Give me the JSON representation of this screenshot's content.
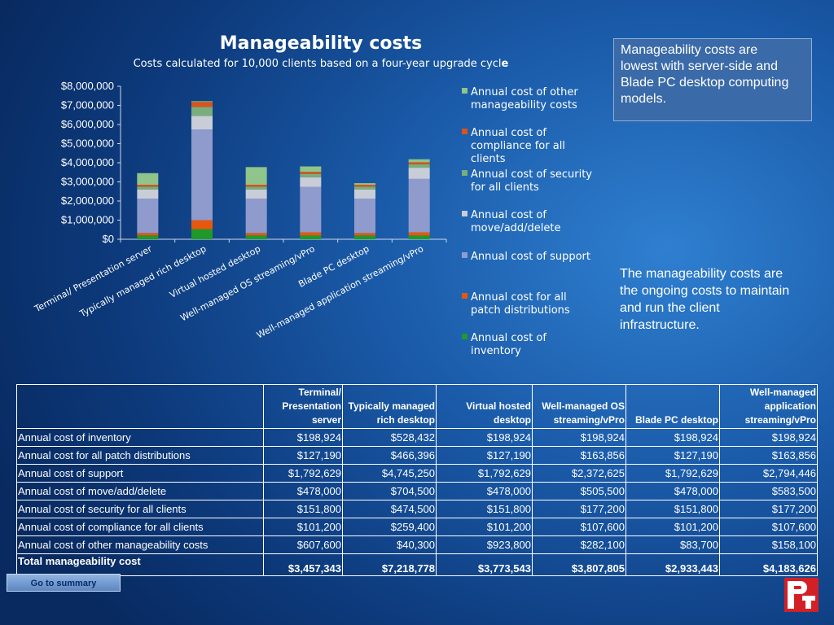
{
  "chart_data": {
    "type": "bar",
    "stacked": true,
    "title": "Manageability costs",
    "subtitle_main": "Costs calculated for 10,000 clients based on a four-year upgrade cycl",
    "subtitle_tail": "e",
    "categories": [
      "Terminal/ Presentation server",
      "Typically  managed rich desktop",
      "Virtual hosted desktop",
      "Well-managed OS streaming/vPro",
      "Blade PC desktop",
      "Well-managed application streaming/vPro"
    ],
    "ylim": [
      0,
      8000000
    ],
    "yticks": [
      0,
      1000000,
      2000000,
      3000000,
      4000000,
      5000000,
      6000000,
      7000000,
      8000000
    ],
    "ytick_labels": [
      "$0",
      "$1,000,000",
      "$2,000,000",
      "$3,000,000",
      "$4,000,000",
      "$5,000,000",
      "$6,000,000",
      "$7,000,000",
      "$8,000,000"
    ],
    "legend_position": "right",
    "series": [
      {
        "name": "Annual cost of inventory",
        "color": "#1f9a2a",
        "values": [
          198924,
          528432,
          198924,
          198924,
          198924,
          198924
        ]
      },
      {
        "name": "Annual cost for all patch distributions",
        "color": "#e8570c",
        "values": [
          127190,
          466396,
          127190,
          163856,
          127190,
          163856
        ]
      },
      {
        "name": "Annual cost of support",
        "color": "#8f9bcc",
        "values": [
          1792629,
          4745250,
          1792629,
          2372625,
          1792629,
          2794446
        ]
      },
      {
        "name": "Annual cost of move/add/delete",
        "color": "#c9cdd8",
        "values": [
          478000,
          704500,
          478000,
          505500,
          478000,
          583500
        ]
      },
      {
        "name": "Annual cost of security for all clients",
        "color": "#7aad7c",
        "values": [
          151800,
          474500,
          151800,
          177200,
          151800,
          177200
        ]
      },
      {
        "name": "Annual cost of compliance for all clients",
        "color": "#d9531a",
        "values": [
          101200,
          259400,
          101200,
          107600,
          101200,
          107600
        ]
      },
      {
        "name": "Annual cost of other manageability costs",
        "color": "#8fc48a",
        "values": [
          607600,
          40300,
          923800,
          282100,
          83700,
          158100
        ]
      }
    ]
  },
  "legend_lines": [
    [
      "Annual cost of other",
      "manageability costs"
    ],
    [
      "Annual cost of",
      "compliance for all",
      "clients"
    ],
    [
      "Annual cost of security",
      "for all clients"
    ],
    [
      "Annual cost of",
      "move/add/delete"
    ],
    [
      "Annual cost of support"
    ],
    [
      "Annual cost for all",
      "patch distributions"
    ],
    [
      "Annual cost of",
      "inventory"
    ]
  ],
  "callout": {
    "line1": "Manageability costs are",
    "line2": "lowest with server-side and",
    "line3": "Blade PC desktop computing",
    "line4": "models."
  },
  "note": {
    "line1": "The manageability costs are",
    "line2": "the ongoing costs to maintain",
    "line3": "and run the client",
    "line4": "infrastructure."
  },
  "table": {
    "headers": [
      [
        "Terminal/",
        "Presentation",
        "server"
      ],
      [
        "Typically  managed",
        "rich desktop"
      ],
      [
        "Virtual hosted",
        "desktop"
      ],
      [
        "Well-managed OS",
        "streaming/vPro"
      ],
      [
        "Blade PC desktop"
      ],
      [
        "Well-managed",
        "application",
        "streaming/vPro"
      ]
    ],
    "rows": [
      {
        "label": "Annual cost of inventory",
        "cells": [
          "$198,924",
          "$528,432",
          "$198,924",
          "$198,924",
          "$198,924",
          "$198,924"
        ]
      },
      {
        "label": "Annual cost for all patch distributions",
        "cells": [
          "$127,190",
          "$466,396",
          "$127,190",
          "$163,856",
          "$127,190",
          "$163,856"
        ]
      },
      {
        "label": "Annual cost of support",
        "cells": [
          "$1,792,629",
          "$4,745,250",
          "$1,792,629",
          "$2,372,625",
          "$1,792,629",
          "$2,794,446"
        ]
      },
      {
        "label": "Annual cost of move/add/delete",
        "cells": [
          "$478,000",
          "$704,500",
          "$478,000",
          "$505,500",
          "$478,000",
          "$583,500"
        ]
      },
      {
        "label": "Annual cost of security for all clients",
        "cells": [
          "$151,800",
          "$474,500",
          "$151,800",
          "$177,200",
          "$151,800",
          "$177,200"
        ]
      },
      {
        "label": "Annual cost of compliance for all clients",
        "cells": [
          "$101,200",
          "$259,400",
          "$101,200",
          "$107,600",
          "$101,200",
          "$107,600"
        ]
      },
      {
        "label": "Annual cost of other manageability costs",
        "cells": [
          "$607,600",
          "$40,300",
          "$923,800",
          "$282,100",
          "$83,700",
          "$158,100"
        ]
      }
    ],
    "total": {
      "label": "Total manageability cost",
      "cells": [
        "$3,457,343",
        "$7,218,778",
        "$3,773,543",
        "$3,807,805",
        "$2,933,443",
        "$4,183,626"
      ]
    }
  },
  "summary_button": "Go to summary",
  "logo": {
    "letters": "PT",
    "color": "#d32027"
  }
}
